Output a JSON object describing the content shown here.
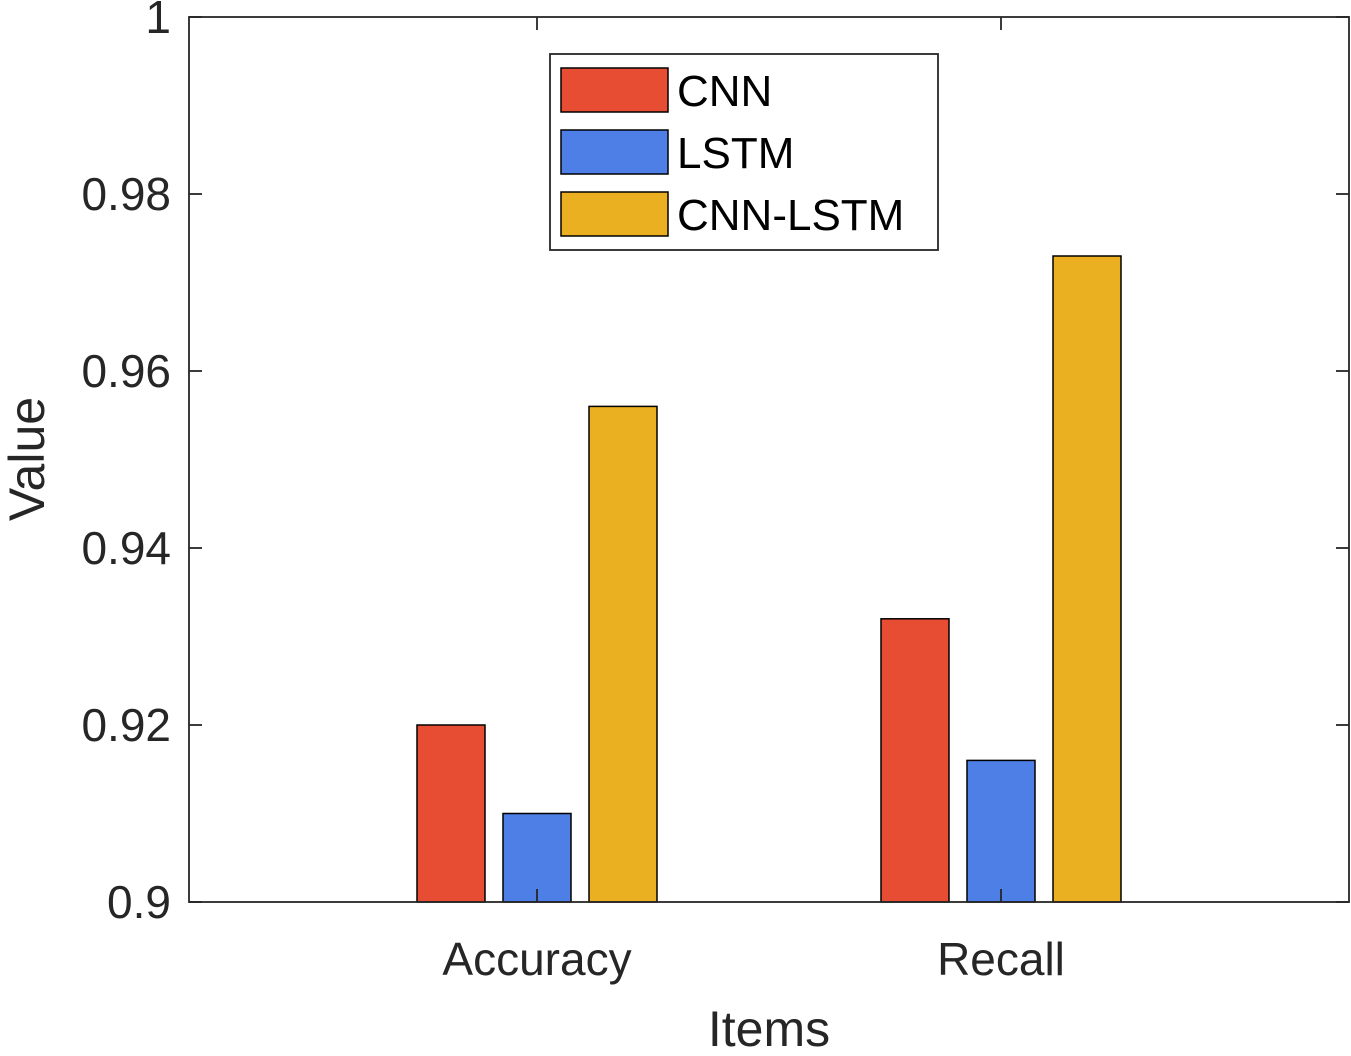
{
  "chart_data": {
    "type": "bar",
    "title": "",
    "xlabel": "Items",
    "ylabel": "Value",
    "categories": [
      "Accuracy",
      "Recall"
    ],
    "x_range": [
      0.25,
      2.75
    ],
    "ylim": [
      0.9,
      1.0
    ],
    "y_ticks": [
      0.9,
      0.92,
      0.94,
      0.96,
      0.98,
      1.0
    ],
    "y_tick_labels": [
      "0.9",
      "0.92",
      "0.94",
      "0.96",
      "0.98",
      "1"
    ],
    "grid": false,
    "legend_position": "top-center",
    "series": [
      {
        "name": "CNN",
        "color": "#E64D33",
        "values": [
          0.92,
          0.932
        ]
      },
      {
        "name": "LSTM",
        "color": "#4D7FE6",
        "values": [
          0.91,
          0.916
        ]
      },
      {
        "name": "CNN-LSTM",
        "color": "#EBB021",
        "values": [
          0.956,
          0.973
        ]
      }
    ]
  }
}
